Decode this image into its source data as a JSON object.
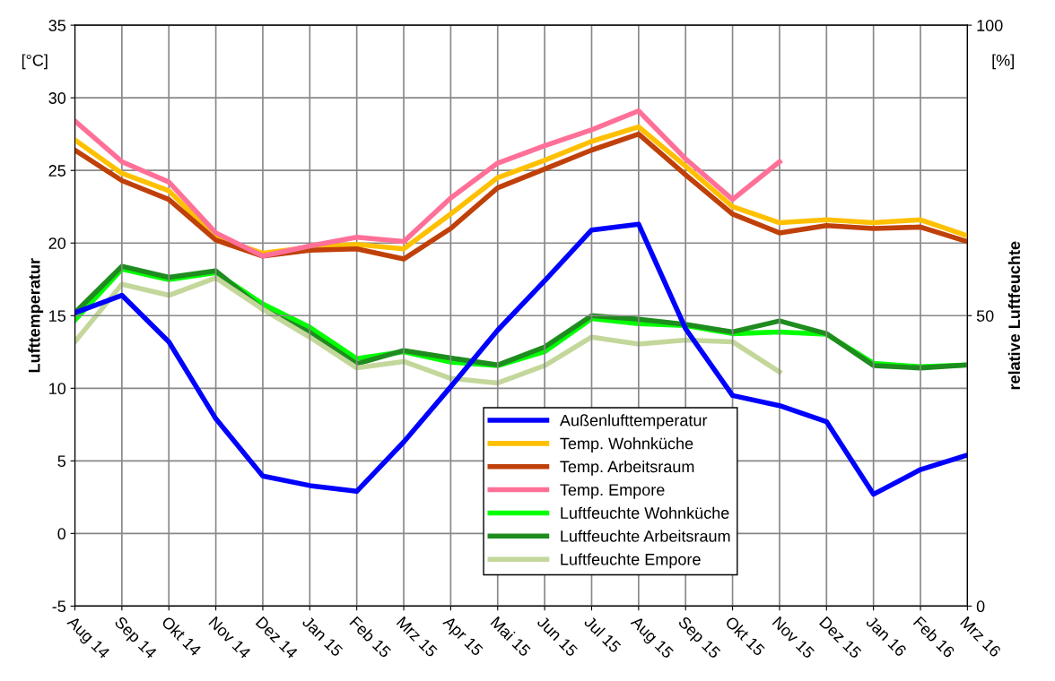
{
  "chart_data": {
    "type": "line",
    "ylabel": "Lufttemperatur",
    "y2label": "relative Luftfeuchte",
    "annotations": [
      "[°C]",
      "[%]"
    ],
    "categories": [
      "Aug 14",
      "Sep 14",
      "Okt 14",
      "Nov 14",
      "Dez 14",
      "Jan 15",
      "Feb 15",
      "Mrz 15",
      "Apr 15",
      "Mai 15",
      "Jun 15",
      "Jul 15",
      "Aug 15",
      "Sep 15",
      "Okt 15",
      "Nov 15",
      "Dez 15",
      "Jan 16",
      "Feb 16",
      "Mrz 16"
    ],
    "ylim": [
      -5,
      35
    ],
    "yticks": [
      -5,
      0,
      5,
      10,
      15,
      20,
      25,
      30,
      35
    ],
    "y2lim": [
      0,
      100
    ],
    "y2ticks": [
      0,
      50,
      100
    ],
    "grid": true,
    "legend": "bottom",
    "marker": "none",
    "line_style": "solid",
    "series": [
      {
        "name": "Außenlufttemperatur",
        "color": "#0000ff",
        "values": [
          15.2,
          16.4,
          13.2,
          7.9,
          3.95,
          3.3,
          2.9,
          6.3,
          10.1,
          14.0,
          17.4,
          20.9,
          21.3,
          14.1,
          9.5,
          8.8,
          7.7,
          2.7,
          4.4,
          5.4
        ]
      },
      {
        "name": "Temp. Wohnküche",
        "color": "#ffc000",
        "values": [
          27.1,
          24.8,
          23.6,
          20.4,
          19.3,
          19.7,
          19.9,
          19.6,
          22.0,
          24.5,
          25.7,
          27.0,
          28.0,
          25.3,
          22.5,
          21.4,
          21.6,
          21.4,
          21.6,
          20.5
        ]
      },
      {
        "name": "Temp. Arbeitsraum",
        "color": "#c0400a",
        "values": [
          26.4,
          24.3,
          23.0,
          20.2,
          19.1,
          19.5,
          19.6,
          18.9,
          21.0,
          23.8,
          25.1,
          26.4,
          27.5,
          24.7,
          22.0,
          20.7,
          21.2,
          21.0,
          21.1,
          20.1
        ]
      },
      {
        "name": "Temp. Empore",
        "color": "#ff7098",
        "values": [
          28.4,
          25.6,
          24.2,
          20.7,
          19.1,
          19.8,
          20.4,
          20.1,
          23.1,
          25.5,
          26.7,
          27.8,
          29.1,
          25.8,
          23.0,
          25.6,
          null,
          null,
          null,
          null
        ]
      },
      {
        "name": "Luftfeuchte Wohnküche",
        "color": "#00ff00",
        "axis": "y2",
        "values": [
          49.2,
          58.0,
          56.2,
          57.4,
          52.0,
          48.0,
          42.6,
          43.8,
          42.0,
          41.4,
          43.8,
          49.5,
          48.6,
          48.3,
          46.9,
          47.2,
          46.8,
          41.8,
          41.2,
          41.5
        ]
      },
      {
        "name": "Luftfeuchte Arbeitsraum",
        "color": "#1e8c1e",
        "axis": "y2",
        "values": [
          50.5,
          58.5,
          56.6,
          57.7,
          51.1,
          47.1,
          41.7,
          44.0,
          42.7,
          41.5,
          44.6,
          50.0,
          49.4,
          48.5,
          47.2,
          49.1,
          46.9,
          41.4,
          41.0,
          41.5
        ]
      },
      {
        "name": "Luftfeuchte Empore",
        "color": "#c4d79b",
        "axis": "y2",
        "values": [
          45.5,
          55.4,
          53.5,
          56.5,
          51.1,
          46.3,
          41.0,
          42.1,
          39.2,
          38.4,
          41.4,
          46.3,
          45.1,
          45.8,
          45.5,
          40.3,
          null,
          null,
          null,
          null
        ]
      }
    ]
  }
}
